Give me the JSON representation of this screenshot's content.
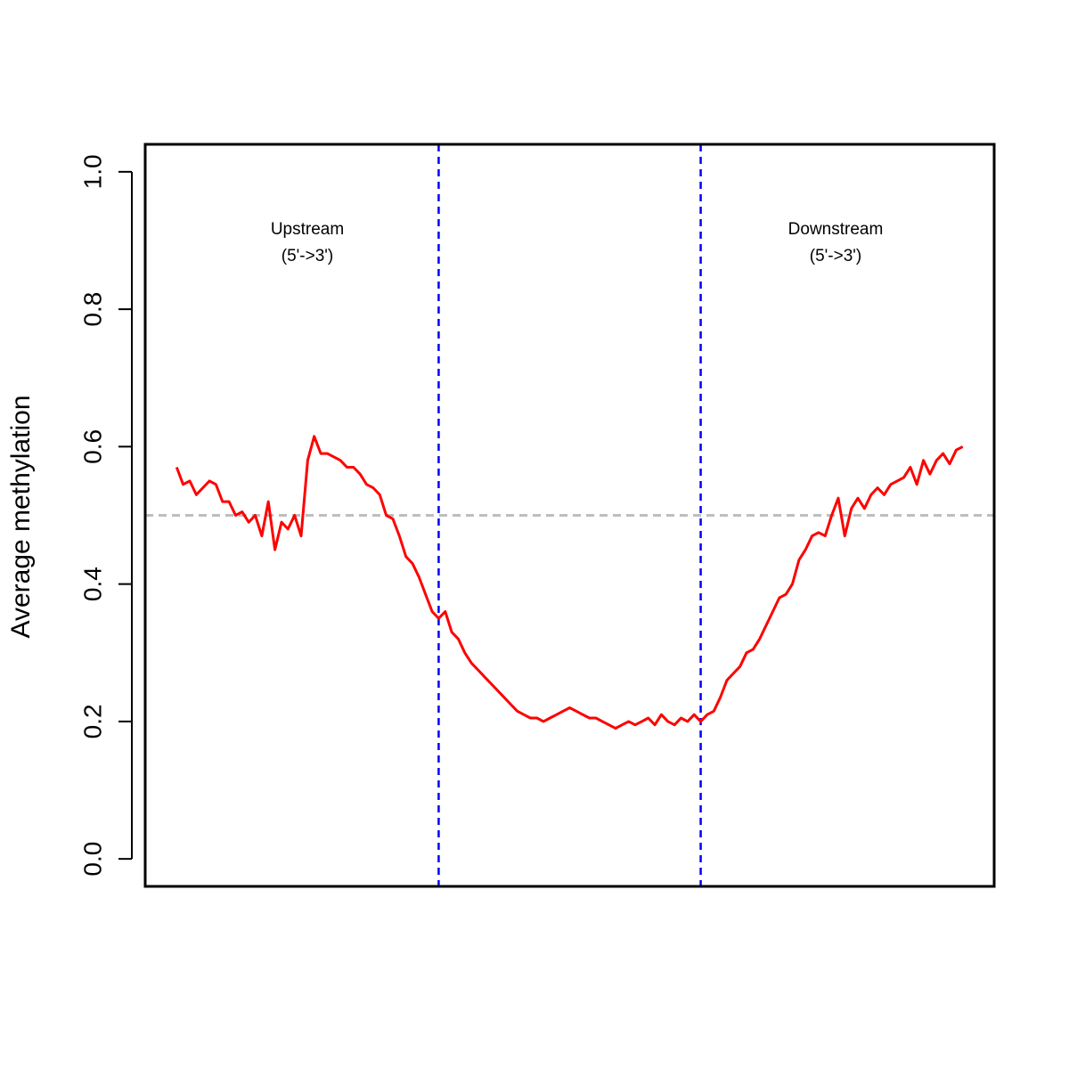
{
  "chart_data": {
    "type": "line",
    "y_label": "Average methylation",
    "annotations": [
      "Upstream",
      "(5'->3')",
      "Downstream",
      "(5'->3')"
    ],
    "xlim": [
      -4.8,
      124.8
    ],
    "ylim": [
      -0.04,
      1.04
    ],
    "yticks": [
      {
        "value": 0,
        "label": "0.0"
      },
      0.2,
      0.4,
      0.6,
      0.8,
      {
        "value": 1,
        "label": "1.0"
      }
    ],
    "vlines": {
      "values": [
        40,
        80
      ],
      "color": "#0000ff"
    },
    "hline": {
      "value": 0.5,
      "color": "#bebebe"
    },
    "series": [
      {
        "color": "#ff0000",
        "values": [
          0.57,
          0.545,
          0.55,
          0.53,
          0.54,
          0.55,
          0.545,
          0.52,
          0.52,
          0.5,
          0.505,
          0.49,
          0.5,
          0.47,
          0.52,
          0.45,
          0.49,
          0.48,
          0.5,
          0.47,
          0.58,
          0.615,
          0.59,
          0.59,
          0.585,
          0.58,
          0.57,
          0.57,
          0.56,
          0.545,
          0.54,
          0.53,
          0.5,
          0.495,
          0.47,
          0.44,
          0.43,
          0.41,
          0.385,
          0.36,
          0.35,
          0.36,
          0.33,
          0.32,
          0.3,
          0.285,
          0.275,
          0.265,
          0.255,
          0.245,
          0.235,
          0.225,
          0.215,
          0.21,
          0.205,
          0.205,
          0.2,
          0.205,
          0.21,
          0.215,
          0.22,
          0.215,
          0.21,
          0.205,
          0.205,
          0.2,
          0.195,
          0.19,
          0.195,
          0.2,
          0.195,
          0.2,
          0.205,
          0.195,
          0.21,
          0.2,
          0.195,
          0.205,
          0.2,
          0.21,
          0.2,
          0.21,
          0.215,
          0.235,
          0.26,
          0.27,
          0.28,
          0.3,
          0.305,
          0.32,
          0.34,
          0.36,
          0.38,
          0.385,
          0.4,
          0.435,
          0.45,
          0.47,
          0.475,
          0.47,
          0.5,
          0.525,
          0.47,
          0.51,
          0.525,
          0.51,
          0.53,
          0.54,
          0.53,
          0.545,
          0.55,
          0.555,
          0.57,
          0.545,
          0.58,
          0.56,
          0.58,
          0.59,
          0.575,
          0.595,
          0.6
        ]
      }
    ]
  }
}
